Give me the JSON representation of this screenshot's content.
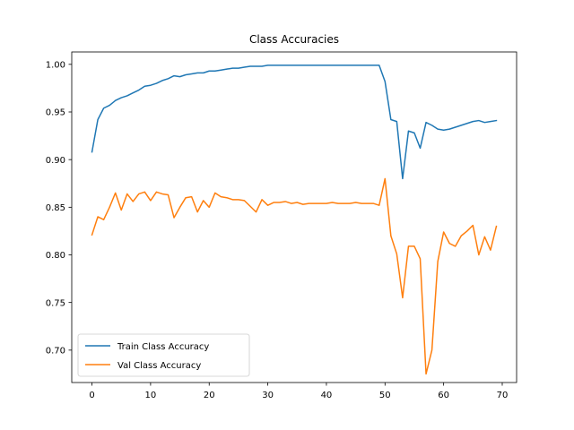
{
  "chart_data": {
    "type": "line",
    "title": "Class Accuracies",
    "xlabel": "",
    "ylabel": "",
    "xlim": [
      -3.45,
      72.45
    ],
    "ylim": [
      0.666,
      1.013
    ],
    "x_ticks": [
      0,
      10,
      20,
      30,
      40,
      50,
      60,
      70
    ],
    "y_ticks": [
      0.7,
      0.75,
      0.8,
      0.85,
      0.9,
      0.95,
      1.0
    ],
    "x_tick_labels": [
      "0",
      "10",
      "20",
      "30",
      "40",
      "50",
      "60",
      "70"
    ],
    "y_tick_labels": [
      "0.70",
      "0.75",
      "0.80",
      "0.85",
      "0.90",
      "0.95",
      "1.00"
    ],
    "grid": false,
    "legend_position": "lower-left",
    "x": [
      0,
      1,
      2,
      3,
      4,
      5,
      6,
      7,
      8,
      9,
      10,
      11,
      12,
      13,
      14,
      15,
      16,
      17,
      18,
      19,
      20,
      21,
      22,
      23,
      24,
      25,
      26,
      27,
      28,
      29,
      30,
      31,
      32,
      33,
      34,
      35,
      36,
      37,
      38,
      39,
      40,
      41,
      42,
      43,
      44,
      45,
      46,
      47,
      48,
      49,
      50,
      51,
      52,
      53,
      54,
      55,
      56,
      57,
      58,
      59,
      60,
      61,
      62,
      63,
      64,
      65,
      66,
      67,
      68,
      69
    ],
    "series": [
      {
        "name": "Train Class Accuracy",
        "color": "#1f77b4",
        "values": [
          0.908,
          0.942,
          0.954,
          0.957,
          0.962,
          0.965,
          0.967,
          0.97,
          0.973,
          0.977,
          0.978,
          0.98,
          0.983,
          0.985,
          0.988,
          0.987,
          0.989,
          0.99,
          0.991,
          0.991,
          0.993,
          0.993,
          0.994,
          0.995,
          0.996,
          0.996,
          0.997,
          0.998,
          0.998,
          0.998,
          0.999,
          0.999,
          0.999,
          0.999,
          0.999,
          0.999,
          0.999,
          0.999,
          0.999,
          0.999,
          0.999,
          0.999,
          0.999,
          0.999,
          0.999,
          0.999,
          0.999,
          0.999,
          0.999,
          0.999,
          0.982,
          0.942,
          0.94,
          0.88,
          0.93,
          0.928,
          0.912,
          0.939,
          0.936,
          0.932,
          0.931,
          0.932,
          0.934,
          0.936,
          0.938,
          0.94,
          0.941,
          0.939,
          0.94,
          0.941
        ]
      },
      {
        "name": "Val Class Accuracy",
        "color": "#ff7f0e",
        "values": [
          0.821,
          0.84,
          0.837,
          0.85,
          0.865,
          0.847,
          0.864,
          0.856,
          0.864,
          0.866,
          0.857,
          0.866,
          0.864,
          0.863,
          0.839,
          0.85,
          0.86,
          0.861,
          0.845,
          0.857,
          0.85,
          0.865,
          0.861,
          0.86,
          0.858,
          0.858,
          0.857,
          0.851,
          0.845,
          0.858,
          0.852,
          0.855,
          0.855,
          0.856,
          0.854,
          0.855,
          0.853,
          0.854,
          0.854,
          0.854,
          0.854,
          0.855,
          0.854,
          0.854,
          0.854,
          0.855,
          0.854,
          0.854,
          0.854,
          0.852,
          0.88,
          0.82,
          0.801,
          0.755,
          0.809,
          0.809,
          0.796,
          0.675,
          0.7,
          0.793,
          0.824,
          0.812,
          0.809,
          0.82,
          0.825,
          0.831,
          0.8,
          0.819,
          0.805,
          0.83
        ]
      }
    ]
  }
}
